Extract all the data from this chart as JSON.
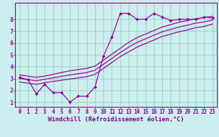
{
  "title": "",
  "xlabel": "Windchill (Refroidissement éolien,°C)",
  "bg_color": "#cceeee",
  "line_color": "#990099",
  "grid_color": "#99ccbb",
  "xlim": [
    -0.5,
    23.5
  ],
  "ylim": [
    0.6,
    9.4
  ],
  "xticks": [
    0,
    1,
    2,
    3,
    4,
    5,
    6,
    7,
    8,
    9,
    10,
    11,
    12,
    13,
    14,
    15,
    16,
    17,
    18,
    19,
    20,
    21,
    22,
    23
  ],
  "yticks": [
    1,
    2,
    3,
    4,
    5,
    6,
    7,
    8
  ],
  "data_x": [
    0,
    1,
    2,
    3,
    4,
    5,
    6,
    7,
    8,
    9,
    10,
    11,
    12,
    13,
    14,
    15,
    16,
    17,
    18,
    19,
    20,
    21,
    22,
    23
  ],
  "data_y": [
    3.1,
    2.9,
    1.7,
    2.5,
    1.8,
    1.8,
    1.0,
    1.5,
    1.5,
    2.3,
    4.9,
    6.5,
    8.5,
    8.5,
    8.0,
    8.0,
    8.5,
    8.2,
    7.9,
    8.0,
    8.0,
    8.0,
    8.2,
    8.1
  ],
  "upper_x": [
    0,
    1,
    2,
    3,
    4,
    5,
    6,
    7,
    8,
    9,
    10,
    11,
    12,
    13,
    14,
    15,
    16,
    17,
    18,
    19,
    20,
    21,
    22,
    23
  ],
  "upper_y": [
    3.3,
    3.2,
    3.1,
    3.2,
    3.35,
    3.5,
    3.65,
    3.75,
    3.85,
    4.05,
    4.55,
    5.05,
    5.55,
    6.05,
    6.45,
    6.75,
    7.05,
    7.35,
    7.55,
    7.75,
    7.9,
    8.05,
    8.15,
    8.25
  ],
  "lower_x": [
    0,
    1,
    2,
    3,
    4,
    5,
    6,
    7,
    8,
    9,
    10,
    11,
    12,
    13,
    14,
    15,
    16,
    17,
    18,
    19,
    20,
    21,
    22,
    23
  ],
  "lower_y": [
    2.7,
    2.6,
    2.5,
    2.65,
    2.75,
    2.85,
    2.95,
    3.05,
    3.15,
    3.35,
    3.85,
    4.35,
    4.85,
    5.25,
    5.65,
    5.95,
    6.25,
    6.55,
    6.75,
    6.95,
    7.1,
    7.3,
    7.4,
    7.6
  ],
  "mid_x": [
    0,
    1,
    2,
    3,
    4,
    5,
    6,
    7,
    8,
    9,
    10,
    11,
    12,
    13,
    14,
    15,
    16,
    17,
    18,
    19,
    20,
    21,
    22,
    23
  ],
  "mid_y": [
    3.0,
    2.9,
    2.8,
    2.93,
    3.05,
    3.18,
    3.3,
    3.4,
    3.5,
    3.7,
    4.2,
    4.7,
    5.2,
    5.65,
    6.05,
    6.35,
    6.65,
    6.95,
    7.15,
    7.35,
    7.5,
    7.68,
    7.78,
    7.93
  ],
  "xlabel_fontsize": 6.5,
  "tick_fontsize": 5.5,
  "markersize": 2.2
}
